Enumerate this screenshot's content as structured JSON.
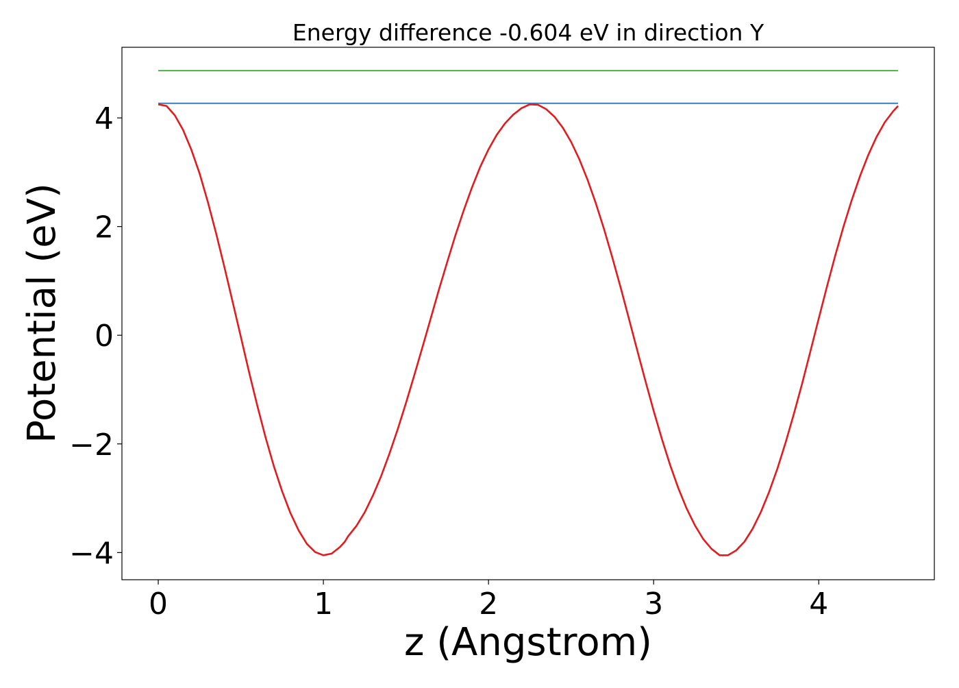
{
  "chart_data": {
    "type": "line",
    "title": "Energy difference -0.604 eV in direction Y",
    "xlabel": "z (Angstrom)",
    "ylabel": "Potential (eV)",
    "xlim": [
      -0.22,
      4.7
    ],
    "ylim": [
      -4.5,
      5.3
    ],
    "xticks": [
      0,
      1,
      2,
      3,
      4
    ],
    "xtick_labels": [
      "0",
      "1",
      "2",
      "3",
      "4"
    ],
    "yticks": [
      -4,
      -2,
      0,
      2,
      4
    ],
    "ytick_labels": [
      "−4",
      "−2",
      "0",
      "2",
      "4"
    ],
    "grid": false,
    "legend": "none",
    "series": [
      {
        "name": "green-level",
        "color": "#4daf4a",
        "x": [
          0,
          4.48
        ],
        "y": [
          4.87,
          4.87
        ]
      },
      {
        "name": "blue-level",
        "color": "#377eb8",
        "x": [
          0,
          4.48
        ],
        "y": [
          4.27,
          4.27
        ]
      },
      {
        "name": "potential-profile",
        "color": "#e41a1c",
        "x": [
          0.0,
          0.05,
          0.1,
          0.15,
          0.2,
          0.25,
          0.3,
          0.35,
          0.4,
          0.45,
          0.5,
          0.55,
          0.6,
          0.65,
          0.7,
          0.75,
          0.8,
          0.85,
          0.9,
          0.95,
          1.0,
          1.05,
          1.1,
          1.13,
          1.15,
          1.2,
          1.25,
          1.3,
          1.35,
          1.4,
          1.45,
          1.5,
          1.55,
          1.6,
          1.65,
          1.7,
          1.75,
          1.8,
          1.85,
          1.9,
          1.95,
          2.0,
          2.05,
          2.1,
          2.15,
          2.2,
          2.25,
          2.3,
          2.35,
          2.4,
          2.45,
          2.5,
          2.55,
          2.6,
          2.65,
          2.7,
          2.75,
          2.8,
          2.85,
          2.9,
          2.95,
          3.0,
          3.05,
          3.1,
          3.15,
          3.2,
          3.25,
          3.3,
          3.35,
          3.4,
          3.45,
          3.5,
          3.55,
          3.6,
          3.65,
          3.7,
          3.75,
          3.8,
          3.85,
          3.9,
          3.95,
          4.0,
          4.05,
          4.1,
          4.15,
          4.2,
          4.25,
          4.3,
          4.35,
          4.4,
          4.45,
          4.48
        ],
        "y": [
          4.25,
          4.22,
          4.05,
          3.78,
          3.42,
          2.98,
          2.46,
          1.88,
          1.26,
          0.62,
          -0.03,
          -0.68,
          -1.3,
          -1.88,
          -2.41,
          -2.87,
          -3.27,
          -3.59,
          -3.84,
          -3.99,
          -4.05,
          -4.02,
          -3.9,
          -3.8,
          -3.7,
          -3.51,
          -3.26,
          -2.95,
          -2.59,
          -2.18,
          -1.73,
          -1.25,
          -0.74,
          -0.22,
          0.31,
          0.84,
          1.35,
          1.84,
          2.3,
          2.72,
          3.1,
          3.42,
          3.69,
          3.9,
          4.06,
          4.18,
          4.25,
          4.24,
          4.16,
          4.02,
          3.82,
          3.56,
          3.24,
          2.86,
          2.43,
          1.95,
          1.43,
          0.88,
          0.31,
          -0.27,
          -0.84,
          -1.39,
          -1.91,
          -2.39,
          -2.82,
          -3.19,
          -3.5,
          -3.75,
          -3.93,
          -4.05,
          -4.05,
          -3.96,
          -3.8,
          -3.56,
          -3.25,
          -2.88,
          -2.45,
          -1.97,
          -1.44,
          -0.88,
          -0.29,
          0.31,
          0.9,
          1.47,
          2.0,
          2.49,
          2.93,
          3.32,
          3.65,
          3.92,
          4.12,
          4.22
        ]
      }
    ]
  }
}
